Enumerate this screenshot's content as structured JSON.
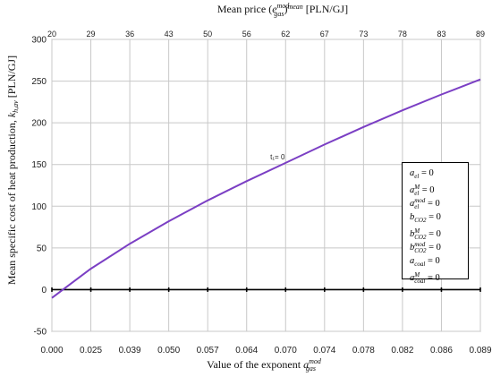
{
  "chart_data": {
    "type": "line",
    "title": "",
    "xlabel": "Value of the exponent a_gas^mod",
    "ylabel": "Mean specific cost of heat production, k_h,av [PLN/GJ]",
    "x2label": "Mean price (e_gas^mod)^mean  [PLN/GJ]",
    "x_tick_labels": [
      "0.000",
      "0.025",
      "0.039",
      "0.050",
      "0.057",
      "0.064",
      "0.070",
      "0.074",
      "0.078",
      "0.082",
      "0.086",
      "0.089"
    ],
    "x2_tick_labels": [
      "20",
      "29",
      "36",
      "43",
      "50",
      "56",
      "62",
      "67",
      "73",
      "78",
      "83",
      "89"
    ],
    "y_ticks": [
      -50,
      0,
      50,
      100,
      150,
      200,
      250,
      300
    ],
    "ylim": [
      -50,
      300
    ],
    "grid": true,
    "series": [
      {
        "values": [
          -10,
          25,
          55,
          82,
          107,
          130,
          152,
          174,
          195,
          215,
          234,
          252
        ],
        "color": "#7b3fc4"
      }
    ],
    "annotations": [
      {
        "text": "t₁= 0",
        "category_index": 6,
        "y": 152
      }
    ],
    "legend_lines": [
      "a_el = 0",
      "a_el^M = 0",
      "a_el^mod = 0",
      "b_CO2 = 0",
      "b_CO2^M = 0",
      "b_CO2^mod = 0",
      "a_coal = 0",
      "a_coal^M = 0"
    ],
    "legend_position": "right"
  }
}
